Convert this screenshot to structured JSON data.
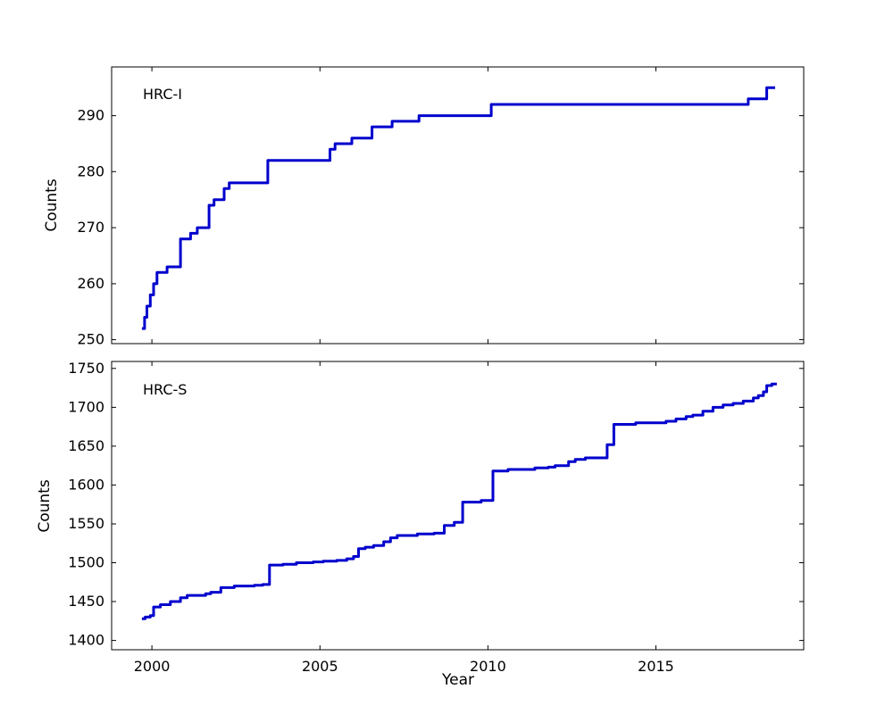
{
  "figure": {
    "background": "#ffffff",
    "axis_color": "#000000",
    "tick_font_size": 16
  },
  "chart_data": [
    {
      "type": "line",
      "title": "HRC-I",
      "ylabel": "Counts",
      "xlabel": "",
      "line_color": "#0000cd",
      "line_width": 3,
      "step": true,
      "grid": false,
      "legend": "none",
      "xlim": [
        1998.8,
        2019.4
      ],
      "ylim": [
        249.3,
        298.7
      ],
      "xticks": [
        2000,
        2005,
        2010,
        2015
      ],
      "xtick_labels_visible": false,
      "yticks": [
        250,
        260,
        270,
        280,
        290
      ],
      "series": [
        {
          "name": "hrc-i-cumulative-counts",
          "points": [
            [
              1999.7,
              252
            ],
            [
              1999.78,
              254
            ],
            [
              1999.85,
              256
            ],
            [
              1999.95,
              258
            ],
            [
              2000.05,
              260
            ],
            [
              2000.15,
              262
            ],
            [
              2000.45,
              263
            ],
            [
              2000.85,
              268
            ],
            [
              2001.15,
              269
            ],
            [
              2001.35,
              270
            ],
            [
              2001.7,
              274
            ],
            [
              2001.85,
              275
            ],
            [
              2002.15,
              277
            ],
            [
              2002.3,
              278
            ],
            [
              2003.45,
              282
            ],
            [
              2005.3,
              284
            ],
            [
              2005.45,
              285
            ],
            [
              2005.95,
              286
            ],
            [
              2006.55,
              288
            ],
            [
              2007.15,
              289
            ],
            [
              2007.95,
              290
            ],
            [
              2010.1,
              292
            ],
            [
              2017.75,
              293
            ],
            [
              2018.3,
              295
            ],
            [
              2018.55,
              295
            ]
          ]
        }
      ]
    },
    {
      "type": "line",
      "title": "HRC-S",
      "ylabel": "Counts",
      "xlabel": "Year",
      "line_color": "#0000cd",
      "line_width": 3,
      "step": true,
      "grid": false,
      "legend": "none",
      "xlim": [
        1998.8,
        2019.4
      ],
      "ylim": [
        1388,
        1759
      ],
      "xticks": [
        2000,
        2005,
        2010,
        2015
      ],
      "xtick_labels_visible": true,
      "yticks": [
        1400,
        1450,
        1500,
        1550,
        1600,
        1650,
        1700,
        1750
      ],
      "series": [
        {
          "name": "hrc-s-cumulative-counts",
          "points": [
            [
              1999.7,
              1428
            ],
            [
              1999.8,
              1430
            ],
            [
              1999.95,
              1432
            ],
            [
              2000.05,
              1443
            ],
            [
              2000.25,
              1446
            ],
            [
              2000.55,
              1450
            ],
            [
              2000.85,
              1455
            ],
            [
              2001.05,
              1458
            ],
            [
              2001.6,
              1460
            ],
            [
              2001.75,
              1462
            ],
            [
              2002.05,
              1468
            ],
            [
              2002.45,
              1470
            ],
            [
              2003.05,
              1471
            ],
            [
              2003.3,
              1472
            ],
            [
              2003.5,
              1497
            ],
            [
              2003.9,
              1498
            ],
            [
              2004.3,
              1500
            ],
            [
              2004.8,
              1501
            ],
            [
              2005.1,
              1502
            ],
            [
              2005.5,
              1503
            ],
            [
              2005.8,
              1505
            ],
            [
              2006.0,
              1508
            ],
            [
              2006.15,
              1518
            ],
            [
              2006.35,
              1520
            ],
            [
              2006.6,
              1522
            ],
            [
              2006.9,
              1527
            ],
            [
              2007.1,
              1532
            ],
            [
              2007.3,
              1535
            ],
            [
              2007.9,
              1537
            ],
            [
              2008.4,
              1538
            ],
            [
              2008.7,
              1548
            ],
            [
              2009.0,
              1552
            ],
            [
              2009.25,
              1578
            ],
            [
              2009.8,
              1580
            ],
            [
              2010.15,
              1618
            ],
            [
              2010.6,
              1620
            ],
            [
              2011.4,
              1622
            ],
            [
              2011.8,
              1623
            ],
            [
              2012.0,
              1625
            ],
            [
              2012.4,
              1630
            ],
            [
              2012.6,
              1633
            ],
            [
              2012.9,
              1635
            ],
            [
              2013.55,
              1652
            ],
            [
              2013.75,
              1678
            ],
            [
              2014.4,
              1680
            ],
            [
              2015.3,
              1682
            ],
            [
              2015.6,
              1685
            ],
            [
              2015.9,
              1688
            ],
            [
              2016.1,
              1690
            ],
            [
              2016.4,
              1695
            ],
            [
              2016.7,
              1700
            ],
            [
              2017.0,
              1703
            ],
            [
              2017.3,
              1705
            ],
            [
              2017.6,
              1708
            ],
            [
              2017.9,
              1712
            ],
            [
              2018.05,
              1715
            ],
            [
              2018.2,
              1720
            ],
            [
              2018.3,
              1728
            ],
            [
              2018.45,
              1730
            ],
            [
              2018.6,
              1730
            ]
          ]
        }
      ]
    }
  ]
}
